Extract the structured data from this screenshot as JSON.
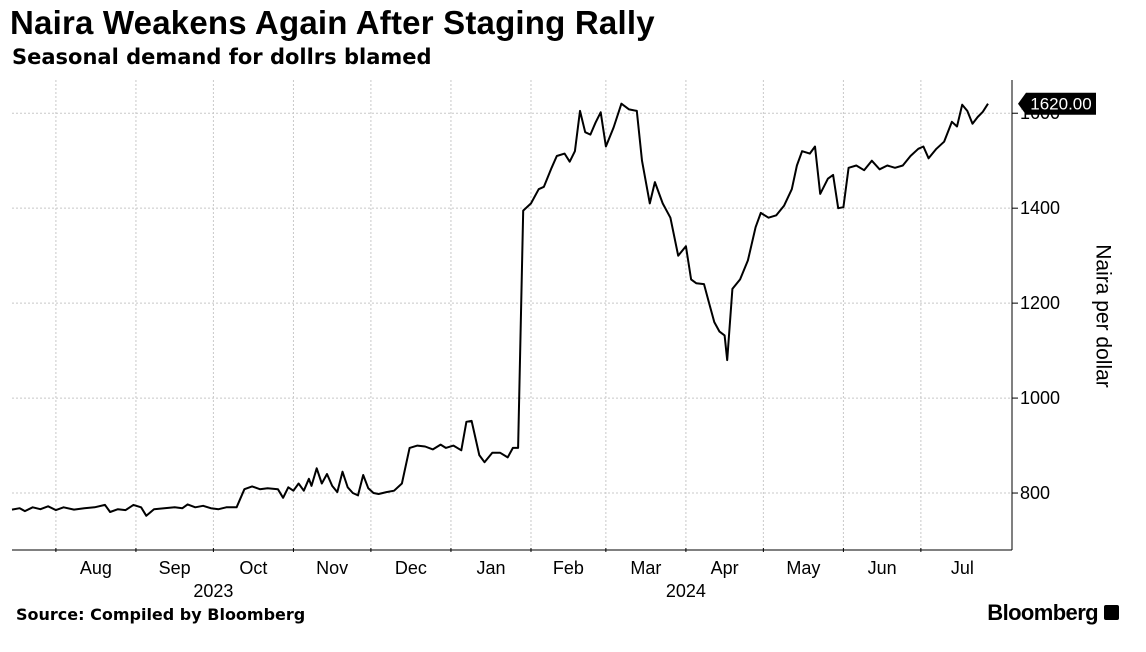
{
  "header": {
    "title": "Naira Weakens Again After Staging Rally",
    "subtitle": "Seasonal demand for dollrs blamed"
  },
  "footer": {
    "source": "Source: Compiled by Bloomberg",
    "brand": "Bloomberg"
  },
  "colors": {
    "line": "#000000",
    "grid": "#c8c8c8",
    "last_value_bg": "#000000"
  },
  "chart_data": {
    "type": "line",
    "title": "Naira Weakens Again After Staging Rally",
    "subtitle": "Seasonal demand for dollrs blamed",
    "ylabel": "Naira per dollar",
    "xlabel": "",
    "ylim": [
      680,
      1670
    ],
    "y_ticks": [
      800,
      1000,
      1200,
      1400,
      1600
    ],
    "y_axis_side": "right",
    "grid": true,
    "last_value_label": "1620.00",
    "x_ticks": [
      {
        "date": "2023-08-01",
        "label": "Aug"
      },
      {
        "date": "2023-09-01",
        "label": "Sep"
      },
      {
        "date": "2023-10-01",
        "label": "Oct"
      },
      {
        "date": "2023-11-01",
        "label": "Nov"
      },
      {
        "date": "2023-12-01",
        "label": "Dec"
      },
      {
        "date": "2024-01-01",
        "label": "Jan"
      },
      {
        "date": "2024-02-01",
        "label": "Feb"
      },
      {
        "date": "2024-03-01",
        "label": "Mar"
      },
      {
        "date": "2024-04-01",
        "label": "Apr"
      },
      {
        "date": "2024-05-01",
        "label": "May"
      },
      {
        "date": "2024-06-01",
        "label": "Jun"
      },
      {
        "date": "2024-07-01",
        "label": "Jul"
      }
    ],
    "year_labels": [
      {
        "date": "2023-10-01",
        "label": "2023"
      },
      {
        "date": "2024-04-01",
        "label": "2024"
      }
    ],
    "x_range": [
      "2023-07-15",
      "2024-07-27"
    ],
    "series": [
      {
        "points": [
          [
            "2023-07-15",
            765
          ],
          [
            "2023-07-18",
            768
          ],
          [
            "2023-07-20",
            762
          ],
          [
            "2023-07-23",
            770
          ],
          [
            "2023-07-26",
            766
          ],
          [
            "2023-07-29",
            772
          ],
          [
            "2023-08-01",
            764
          ],
          [
            "2023-08-04",
            770
          ],
          [
            "2023-08-08",
            765
          ],
          [
            "2023-08-12",
            768
          ],
          [
            "2023-08-16",
            770
          ],
          [
            "2023-08-20",
            775
          ],
          [
            "2023-08-22",
            760
          ],
          [
            "2023-08-25",
            766
          ],
          [
            "2023-08-28",
            764
          ],
          [
            "2023-08-31",
            775
          ],
          [
            "2023-09-03",
            770
          ],
          [
            "2023-09-05",
            752
          ],
          [
            "2023-09-08",
            766
          ],
          [
            "2023-09-12",
            768
          ],
          [
            "2023-09-16",
            770
          ],
          [
            "2023-09-19",
            768
          ],
          [
            "2023-09-21",
            776
          ],
          [
            "2023-09-24",
            770
          ],
          [
            "2023-09-27",
            773
          ],
          [
            "2023-09-30",
            768
          ],
          [
            "2023-10-03",
            766
          ],
          [
            "2023-10-06",
            770
          ],
          [
            "2023-10-10",
            770
          ],
          [
            "2023-10-13",
            808
          ],
          [
            "2023-10-16",
            814
          ],
          [
            "2023-10-19",
            808
          ],
          [
            "2023-10-22",
            810
          ],
          [
            "2023-10-26",
            808
          ],
          [
            "2023-10-28",
            790
          ],
          [
            "2023-10-30",
            812
          ],
          [
            "2023-11-01",
            805
          ],
          [
            "2023-11-03",
            820
          ],
          [
            "2023-11-05",
            805
          ],
          [
            "2023-11-07",
            830
          ],
          [
            "2023-11-08",
            815
          ],
          [
            "2023-11-10",
            852
          ],
          [
            "2023-11-12",
            820
          ],
          [
            "2023-11-14",
            840
          ],
          [
            "2023-11-16",
            815
          ],
          [
            "2023-11-18",
            802
          ],
          [
            "2023-11-20",
            845
          ],
          [
            "2023-11-22",
            812
          ],
          [
            "2023-11-24",
            800
          ],
          [
            "2023-11-26",
            795
          ],
          [
            "2023-11-28",
            838
          ],
          [
            "2023-11-30",
            810
          ],
          [
            "2023-12-02",
            800
          ],
          [
            "2023-12-04",
            798
          ],
          [
            "2023-12-07",
            802
          ],
          [
            "2023-12-10",
            805
          ],
          [
            "2023-12-13",
            820
          ],
          [
            "2023-12-16",
            895
          ],
          [
            "2023-12-19",
            900
          ],
          [
            "2023-12-22",
            898
          ],
          [
            "2023-12-25",
            892
          ],
          [
            "2023-12-28",
            902
          ],
          [
            "2023-12-30",
            895
          ],
          [
            "2024-01-02",
            900
          ],
          [
            "2024-01-05",
            890
          ],
          [
            "2024-01-07",
            950
          ],
          [
            "2024-01-09",
            952
          ],
          [
            "2024-01-12",
            880
          ],
          [
            "2024-01-14",
            865
          ],
          [
            "2024-01-17",
            885
          ],
          [
            "2024-01-20",
            885
          ],
          [
            "2024-01-23",
            875
          ],
          [
            "2024-01-25",
            895
          ],
          [
            "2024-01-27",
            895
          ],
          [
            "2024-01-29",
            1395
          ],
          [
            "2024-02-01",
            1410
          ],
          [
            "2024-02-04",
            1440
          ],
          [
            "2024-02-06",
            1445
          ],
          [
            "2024-02-09",
            1485
          ],
          [
            "2024-02-11",
            1510
          ],
          [
            "2024-02-14",
            1515
          ],
          [
            "2024-02-16",
            1498
          ],
          [
            "2024-02-18",
            1520
          ],
          [
            "2024-02-20",
            1605
          ],
          [
            "2024-02-22",
            1560
          ],
          [
            "2024-02-24",
            1555
          ],
          [
            "2024-02-26",
            1580
          ],
          [
            "2024-02-28",
            1602
          ],
          [
            "2024-03-01",
            1530
          ],
          [
            "2024-03-04",
            1570
          ],
          [
            "2024-03-07",
            1620
          ],
          [
            "2024-03-10",
            1608
          ],
          [
            "2024-03-13",
            1605
          ],
          [
            "2024-03-15",
            1500
          ],
          [
            "2024-03-18",
            1410
          ],
          [
            "2024-03-20",
            1455
          ],
          [
            "2024-03-23",
            1410
          ],
          [
            "2024-03-26",
            1380
          ],
          [
            "2024-03-29",
            1300
          ],
          [
            "2024-04-01",
            1320
          ],
          [
            "2024-04-03",
            1250
          ],
          [
            "2024-04-05",
            1242
          ],
          [
            "2024-04-08",
            1240
          ],
          [
            "2024-04-10",
            1200
          ],
          [
            "2024-04-12",
            1160
          ],
          [
            "2024-04-14",
            1140
          ],
          [
            "2024-04-16",
            1132
          ],
          [
            "2024-04-17",
            1080
          ],
          [
            "2024-04-19",
            1230
          ],
          [
            "2024-04-22",
            1250
          ],
          [
            "2024-04-25",
            1290
          ],
          [
            "2024-04-28",
            1360
          ],
          [
            "2024-04-30",
            1390
          ],
          [
            "2024-05-03",
            1380
          ],
          [
            "2024-05-06",
            1385
          ],
          [
            "2024-05-09",
            1405
          ],
          [
            "2024-05-12",
            1440
          ],
          [
            "2024-05-14",
            1490
          ],
          [
            "2024-05-16",
            1520
          ],
          [
            "2024-05-19",
            1515
          ],
          [
            "2024-05-21",
            1530
          ],
          [
            "2024-05-23",
            1430
          ],
          [
            "2024-05-26",
            1462
          ],
          [
            "2024-05-28",
            1470
          ],
          [
            "2024-05-30",
            1400
          ],
          [
            "2024-06-01",
            1402
          ],
          [
            "2024-06-03",
            1485
          ],
          [
            "2024-06-06",
            1490
          ],
          [
            "2024-06-09",
            1480
          ],
          [
            "2024-06-12",
            1500
          ],
          [
            "2024-06-15",
            1482
          ],
          [
            "2024-06-18",
            1490
          ],
          [
            "2024-06-21",
            1485
          ],
          [
            "2024-06-24",
            1490
          ],
          [
            "2024-06-27",
            1510
          ],
          [
            "2024-06-30",
            1525
          ],
          [
            "2024-07-02",
            1530
          ],
          [
            "2024-07-04",
            1505
          ],
          [
            "2024-07-07",
            1525
          ],
          [
            "2024-07-10",
            1540
          ],
          [
            "2024-07-13",
            1582
          ],
          [
            "2024-07-15",
            1572
          ],
          [
            "2024-07-17",
            1618
          ],
          [
            "2024-07-19",
            1605
          ],
          [
            "2024-07-21",
            1578
          ],
          [
            "2024-07-23",
            1592
          ],
          [
            "2024-07-25",
            1603
          ],
          [
            "2024-07-27",
            1620
          ]
        ]
      }
    ]
  }
}
